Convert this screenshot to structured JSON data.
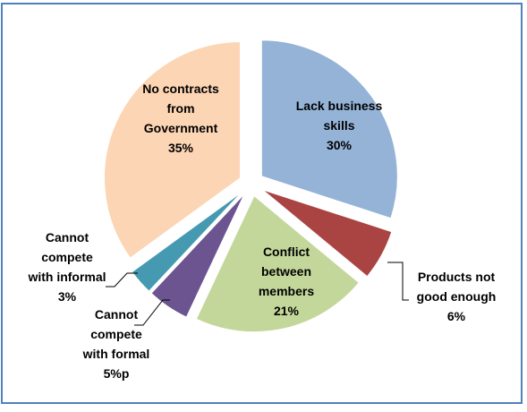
{
  "chart_data": {
    "type": "pie",
    "title": "",
    "slices": [
      {
        "lines": [
          "Lack business",
          "skills",
          "30%"
        ],
        "value": 30,
        "color": "#95B3D7",
        "explode": true
      },
      {
        "lines": [
          "Products not",
          "good enough",
          "6%"
        ],
        "value": 6,
        "color": "#A94442",
        "explode": true
      },
      {
        "lines": [
          "Conflict",
          "between",
          "members",
          "21%"
        ],
        "value": 21,
        "color": "#C4D79B",
        "explode": true
      },
      {
        "lines": [
          "Cannot",
          "compete",
          "with formal",
          "5%p"
        ],
        "value": 5,
        "color": "#6B5490",
        "explode": true
      },
      {
        "lines": [
          "Cannot",
          "compete",
          "with informal",
          "3%"
        ],
        "value": 3,
        "color": "#4599B1",
        "explode": true
      },
      {
        "lines": [
          "No contracts",
          "from",
          "Government",
          "35%"
        ],
        "value": 35,
        "color": "#FCD5B4",
        "explode": true
      }
    ],
    "legend": "none",
    "start_angle_deg": 0,
    "direction": "clockwise"
  }
}
